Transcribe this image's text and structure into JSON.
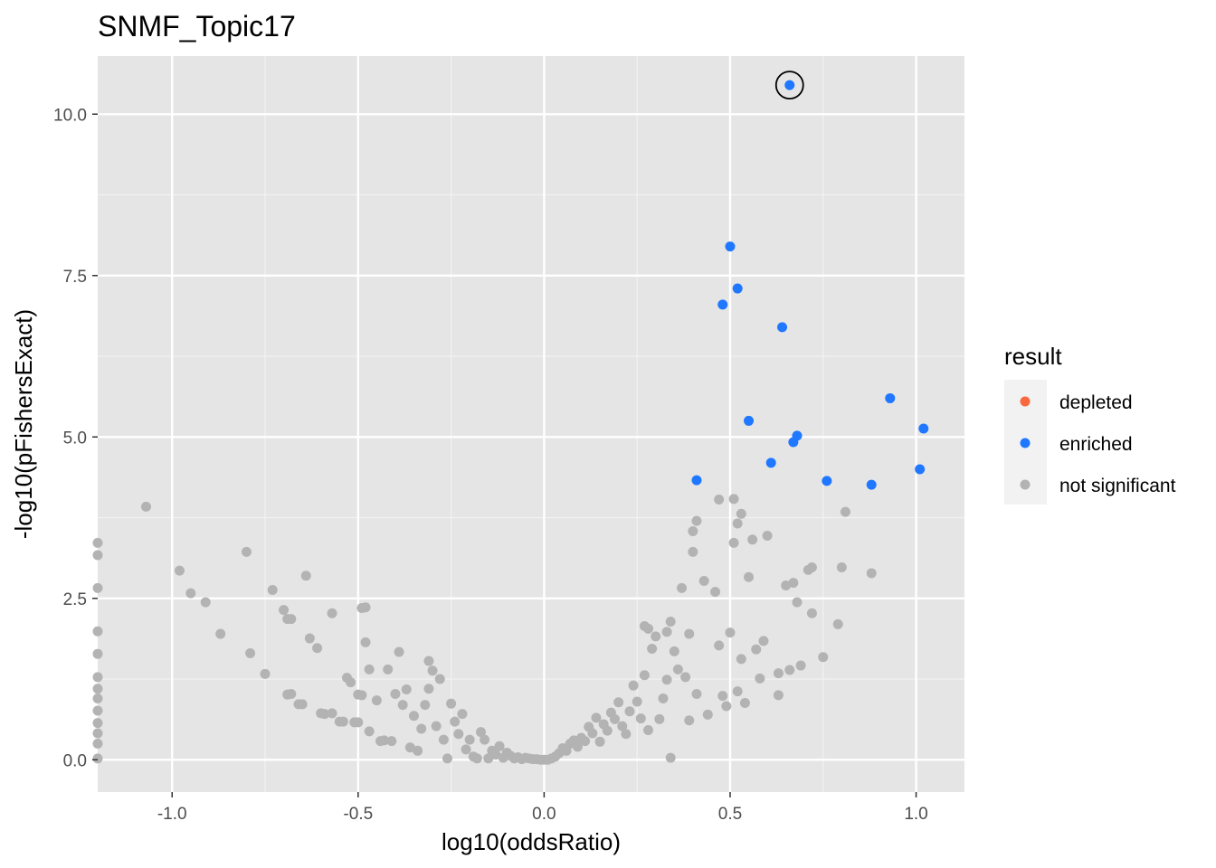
{
  "chart_data": {
    "type": "scatter",
    "title": "SNMF_Topic17",
    "xlabel": "log10(oddsRatio)",
    "ylabel": "-log10(pFishersExact)",
    "xlim": [
      -1.2,
      1.13
    ],
    "ylim": [
      -0.5,
      10.9
    ],
    "x_ticks": [
      -1.0,
      -0.5,
      0.0,
      0.5,
      1.0
    ],
    "x_tick_labels": [
      "-1.0",
      "-0.5",
      "0.0",
      "0.5",
      "1.0"
    ],
    "y_ticks": [
      0.0,
      2.5,
      5.0,
      7.5,
      10.0
    ],
    "y_tick_labels": [
      "0.0",
      "2.5",
      "5.0",
      "7.5",
      "10.0"
    ],
    "grid": true,
    "panel_background": "#e5e5e5",
    "legend": {
      "title": "result",
      "position": "right",
      "entries": [
        {
          "label": "depleted",
          "color": "#f8693f"
        },
        {
          "label": "enriched",
          "color": "#1f78ff"
        },
        {
          "label": "not significant",
          "color": "#b3b3b3"
        }
      ]
    },
    "highlight": {
      "x": 0.66,
      "y": 10.45
    },
    "series": [
      {
        "name": "enriched",
        "color": "#1f78ff",
        "points": [
          [
            0.66,
            10.45
          ],
          [
            0.5,
            7.95
          ],
          [
            0.52,
            7.3
          ],
          [
            0.48,
            7.05
          ],
          [
            0.64,
            6.7
          ],
          [
            0.93,
            5.6
          ],
          [
            0.55,
            5.25
          ],
          [
            1.02,
            5.13
          ],
          [
            0.68,
            5.02
          ],
          [
            0.67,
            4.92
          ],
          [
            0.61,
            4.6
          ],
          [
            1.01,
            4.5
          ],
          [
            0.41,
            4.33
          ],
          [
            0.76,
            4.32
          ],
          [
            0.88,
            4.26
          ]
        ]
      },
      {
        "name": "not significant",
        "color": "#b3b3b3",
        "points": [
          [
            -1.07,
            3.92
          ],
          [
            -0.98,
            2.93
          ],
          [
            -0.95,
            2.58
          ],
          [
            -0.91,
            2.44
          ],
          [
            -0.87,
            1.95
          ],
          [
            -0.8,
            3.22
          ],
          [
            -0.79,
            1.65
          ],
          [
            -0.75,
            1.33
          ],
          [
            -0.73,
            2.63
          ],
          [
            -0.7,
            2.32
          ],
          [
            -0.69,
            2.18
          ],
          [
            -0.68,
            2.18
          ],
          [
            -0.69,
            1.01
          ],
          [
            -0.68,
            1.02
          ],
          [
            -0.66,
            0.86
          ],
          [
            -0.65,
            0.86
          ],
          [
            -0.64,
            2.85
          ],
          [
            -0.63,
            1.88
          ],
          [
            -0.61,
            1.73
          ],
          [
            -0.6,
            0.72
          ],
          [
            -0.59,
            0.71
          ],
          [
            -0.57,
            2.27
          ],
          [
            -0.57,
            0.72
          ],
          [
            -0.55,
            0.59
          ],
          [
            -0.54,
            0.59
          ],
          [
            -0.53,
            1.27
          ],
          [
            -0.52,
            1.2
          ],
          [
            -0.51,
            0.58
          ],
          [
            -0.5,
            0.58
          ],
          [
            -0.5,
            1.01
          ],
          [
            -0.49,
            2.35
          ],
          [
            -0.48,
            2.36
          ],
          [
            -0.48,
            1.82
          ],
          [
            -0.49,
            1.0
          ],
          [
            -0.47,
            1.4
          ],
          [
            -0.47,
            0.44
          ],
          [
            -0.45,
            0.92
          ],
          [
            -0.44,
            0.29
          ],
          [
            -0.43,
            0.3
          ],
          [
            -0.42,
            1.4
          ],
          [
            -0.41,
            0.29
          ],
          [
            -0.4,
            1.02
          ],
          [
            -0.39,
            1.67
          ],
          [
            -0.38,
            0.85
          ],
          [
            -0.37,
            1.09
          ],
          [
            -0.36,
            0.19
          ],
          [
            -0.35,
            0.68
          ],
          [
            -0.34,
            0.14
          ],
          [
            -0.33,
            0.48
          ],
          [
            -0.32,
            0.85
          ],
          [
            -0.31,
            1.1
          ],
          [
            -0.31,
            1.53
          ],
          [
            -0.3,
            1.38
          ],
          [
            -0.29,
            0.52
          ],
          [
            -0.28,
            1.25
          ],
          [
            -0.27,
            0.31
          ],
          [
            -0.26,
            0.02
          ],
          [
            -0.25,
            0.87
          ],
          [
            -0.24,
            0.59
          ],
          [
            -0.23,
            0.4
          ],
          [
            -0.22,
            0.71
          ],
          [
            -0.21,
            0.16
          ],
          [
            -0.2,
            0.31
          ],
          [
            -0.19,
            0.05
          ],
          [
            -0.18,
            0.02
          ],
          [
            -0.17,
            0.43
          ],
          [
            -0.16,
            0.31
          ],
          [
            -0.15,
            0.02
          ],
          [
            -0.14,
            0.14
          ],
          [
            -0.13,
            0.08
          ],
          [
            -0.12,
            0.21
          ],
          [
            -0.11,
            0.03
          ],
          [
            -0.1,
            0.11
          ],
          [
            -0.09,
            0.06
          ],
          [
            -0.08,
            0.02
          ],
          [
            -0.07,
            0.04
          ],
          [
            -0.06,
            0.01
          ],
          [
            -0.05,
            0.03
          ],
          [
            -0.04,
            0.02
          ],
          [
            -0.03,
            0.01
          ],
          [
            -0.02,
            0.01
          ],
          [
            -0.01,
            0.0
          ],
          [
            0.0,
            0.0
          ],
          [
            0.01,
            0.0
          ],
          [
            0.02,
            0.02
          ],
          [
            0.03,
            0.05
          ],
          [
            0.04,
            0.1
          ],
          [
            0.05,
            0.18
          ],
          [
            0.06,
            0.14
          ],
          [
            0.07,
            0.25
          ],
          [
            0.08,
            0.3
          ],
          [
            0.09,
            0.2
          ],
          [
            0.1,
            0.34
          ],
          [
            0.11,
            0.29
          ],
          [
            0.12,
            0.51
          ],
          [
            0.13,
            0.41
          ],
          [
            0.14,
            0.65
          ],
          [
            0.15,
            0.28
          ],
          [
            0.16,
            0.55
          ],
          [
            0.17,
            0.45
          ],
          [
            0.18,
            0.73
          ],
          [
            0.19,
            0.63
          ],
          [
            0.2,
            0.89
          ],
          [
            0.21,
            0.52
          ],
          [
            0.22,
            0.4
          ],
          [
            0.23,
            0.75
          ],
          [
            0.24,
            1.15
          ],
          [
            0.25,
            0.9
          ],
          [
            0.26,
            0.64
          ],
          [
            0.27,
            1.31
          ],
          [
            0.28,
            0.46
          ],
          [
            0.29,
            1.72
          ],
          [
            0.27,
            2.07
          ],
          [
            0.28,
            2.03
          ],
          [
            0.3,
            1.91
          ],
          [
            0.31,
            0.63
          ],
          [
            0.32,
            0.95
          ],
          [
            0.33,
            1.98
          ],
          [
            0.33,
            1.24
          ],
          [
            0.34,
            0.03
          ],
          [
            0.34,
            2.14
          ],
          [
            0.35,
            1.68
          ],
          [
            0.36,
            1.4
          ],
          [
            0.37,
            2.66
          ],
          [
            0.38,
            1.28
          ],
          [
            0.39,
            0.61
          ],
          [
            0.39,
            1.95
          ],
          [
            0.4,
            3.22
          ],
          [
            0.41,
            1.02
          ],
          [
            0.43,
            2.77
          ],
          [
            0.44,
            0.7
          ],
          [
            0.46,
            2.6
          ],
          [
            0.47,
            1.77
          ],
          [
            0.48,
            0.99
          ],
          [
            0.49,
            0.83
          ],
          [
            0.5,
            1.97
          ],
          [
            0.51,
            3.36
          ],
          [
            0.52,
            1.06
          ],
          [
            0.53,
            1.56
          ],
          [
            0.54,
            0.88
          ],
          [
            0.55,
            2.83
          ],
          [
            0.56,
            3.41
          ],
          [
            0.57,
            1.71
          ],
          [
            0.58,
            1.26
          ],
          [
            0.59,
            1.84
          ],
          [
            0.6,
            3.47
          ],
          [
            0.63,
            1.34
          ],
          [
            0.63,
            1.0
          ],
          [
            0.65,
            2.7
          ],
          [
            0.66,
            1.39
          ],
          [
            0.67,
            2.74
          ],
          [
            0.68,
            2.44
          ],
          [
            0.69,
            1.46
          ],
          [
            0.71,
            2.94
          ],
          [
            0.72,
            2.27
          ],
          [
            0.72,
            2.98
          ],
          [
            0.75,
            1.59
          ],
          [
            0.79,
            2.1
          ],
          [
            0.8,
            2.98
          ],
          [
            0.81,
            3.84
          ],
          [
            0.88,
            2.89
          ],
          [
            0.4,
            3.54
          ],
          [
            0.41,
            3.7
          ],
          [
            0.47,
            4.03
          ],
          [
            0.51,
            4.04
          ],
          [
            0.52,
            3.66
          ],
          [
            0.53,
            3.81
          ],
          [
            -1.2,
            3.36
          ],
          [
            -1.2,
            3.17
          ],
          [
            -1.2,
            2.66
          ],
          [
            -1.2,
            1.99
          ],
          [
            -1.2,
            1.64
          ],
          [
            -1.2,
            1.28
          ],
          [
            -1.2,
            1.1
          ],
          [
            -1.2,
            0.95
          ],
          [
            -1.2,
            0.76
          ],
          [
            -1.2,
            0.57
          ],
          [
            -1.2,
            0.41
          ],
          [
            -1.2,
            0.25
          ],
          [
            -1.2,
            0.02
          ]
        ]
      }
    ]
  }
}
